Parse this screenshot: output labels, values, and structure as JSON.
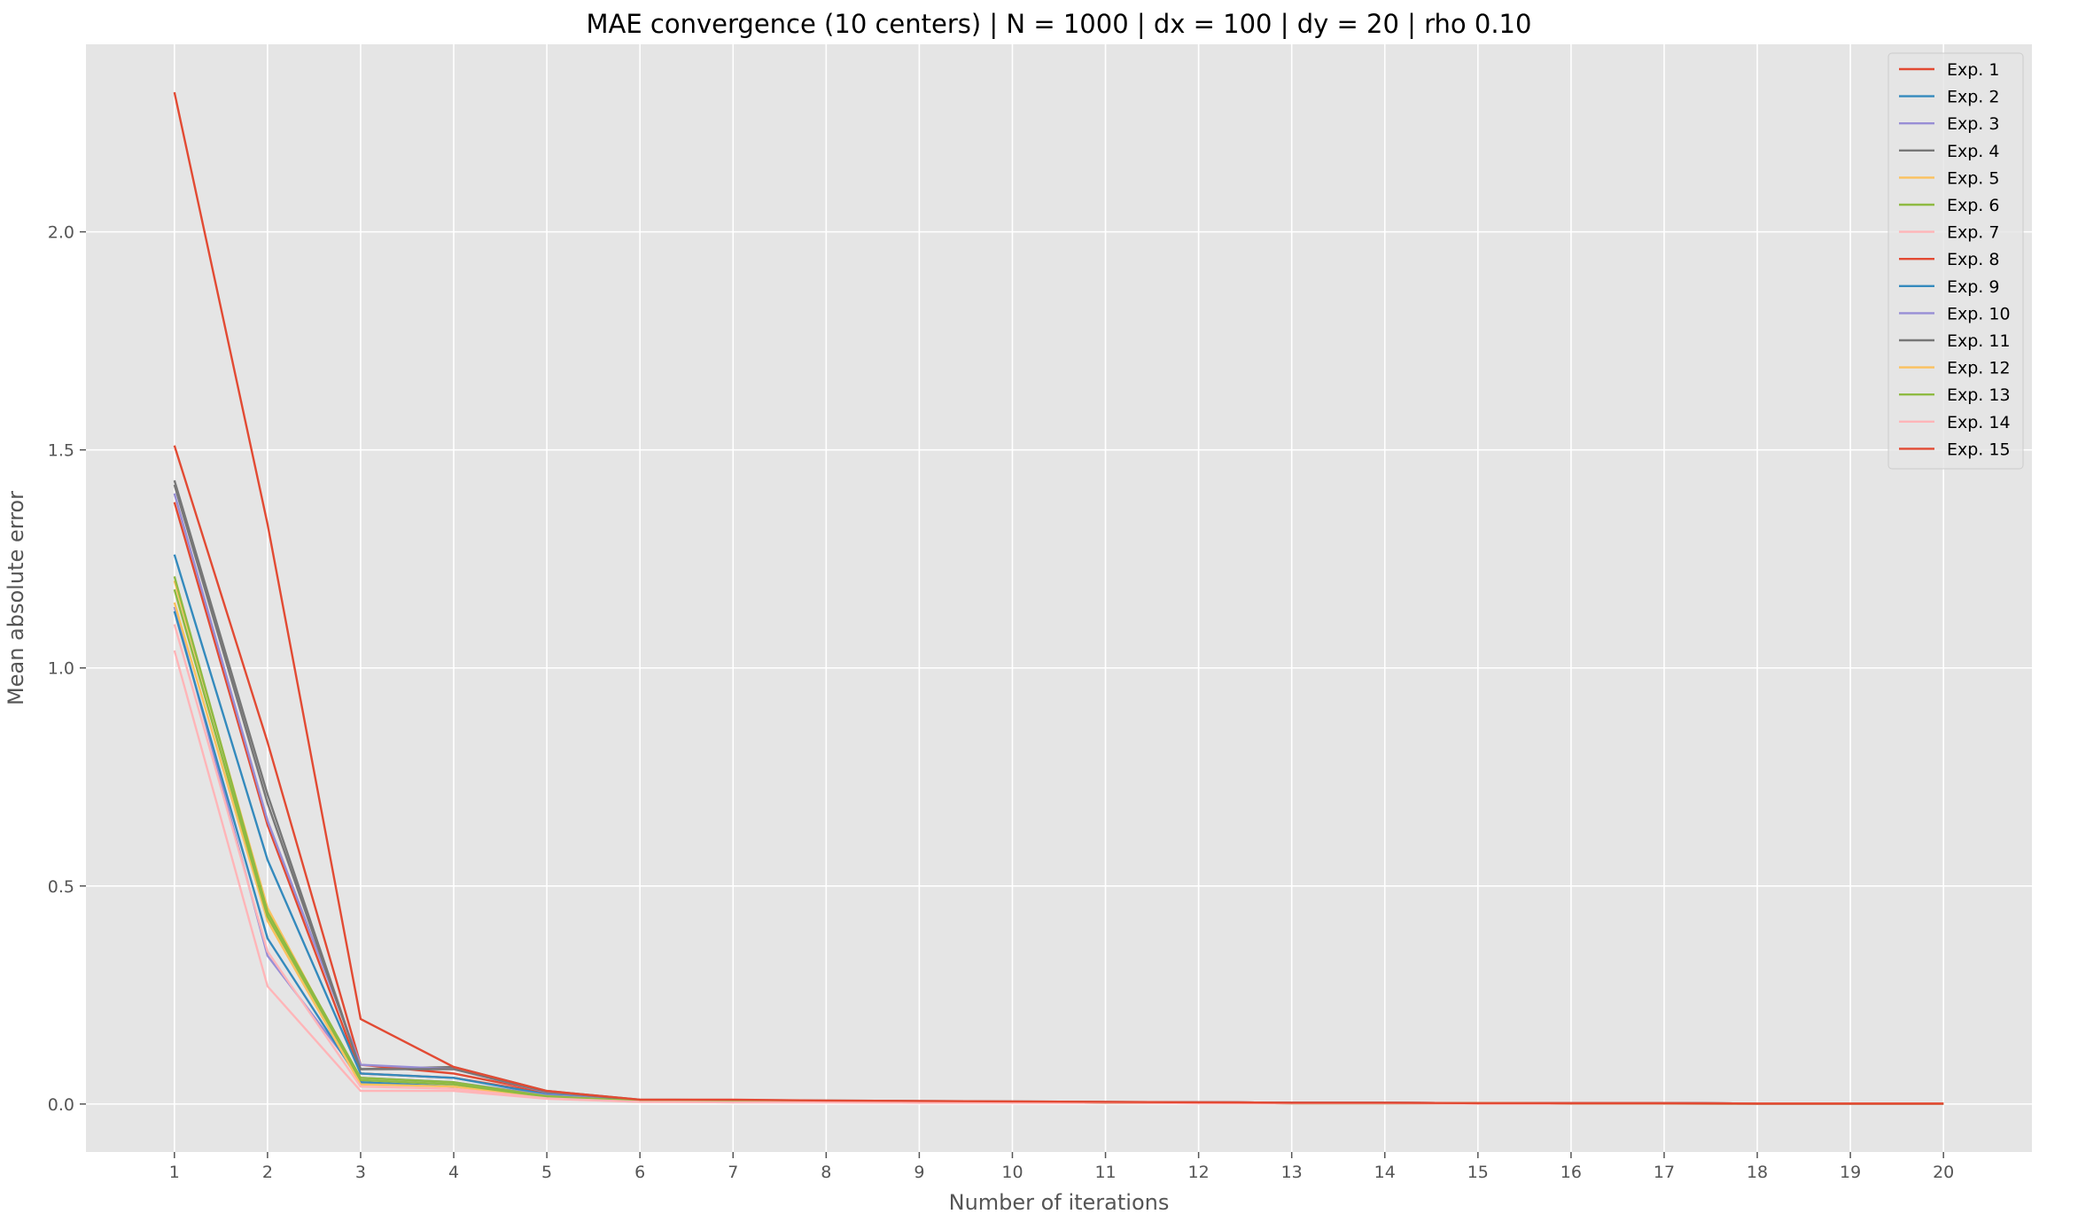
{
  "chart_data": {
    "type": "line",
    "title": "MAE convergence (10 centers) | N = 1000 | dx = 100 | dy = 20 | rho 0.10",
    "xlabel": "Number of iterations",
    "ylabel": "Mean absolute error",
    "xlim": [
      0.05,
      20.95
    ],
    "ylim": [
      -0.11,
      2.43
    ],
    "x": [
      1,
      2,
      3,
      4,
      5,
      6,
      7,
      8,
      9,
      10,
      11,
      12,
      13,
      14,
      15,
      16,
      17,
      18,
      19,
      20
    ],
    "x_ticks": [
      1,
      2,
      3,
      4,
      5,
      6,
      7,
      8,
      9,
      10,
      11,
      12,
      13,
      14,
      15,
      16,
      17,
      18,
      19,
      20
    ],
    "y_ticks": [
      0.0,
      0.5,
      1.0,
      1.5,
      2.0
    ],
    "y_tick_labels": [
      "0.0",
      "0.5",
      "1.0",
      "1.5",
      "2.0"
    ],
    "grid": true,
    "style": "ggplot",
    "legend_position": "upper right",
    "series": [
      {
        "name": "Exp. 1",
        "color": "#E24A33",
        "values": [
          1.38,
          0.64,
          0.07,
          0.06,
          0.025,
          0.009,
          0.008,
          0.007,
          0.006,
          0.005,
          0.004,
          0.004,
          0.003,
          0.003,
          0.002,
          0.002,
          0.002,
          0.001,
          0.001,
          0.001
        ]
      },
      {
        "name": "Exp. 2",
        "color": "#348ABD",
        "values": [
          1.26,
          0.56,
          0.07,
          0.06,
          0.022,
          0.008,
          0.007,
          0.006,
          0.005,
          0.004,
          0.004,
          0.003,
          0.003,
          0.002,
          0.002,
          0.002,
          0.001,
          0.001,
          0.001,
          0.001
        ]
      },
      {
        "name": "Exp. 3",
        "color": "#988ED5",
        "values": [
          1.14,
          0.34,
          0.06,
          0.05,
          0.02,
          0.007,
          0.006,
          0.005,
          0.005,
          0.004,
          0.003,
          0.003,
          0.002,
          0.002,
          0.002,
          0.001,
          0.001,
          0.001,
          0.001,
          0.001
        ]
      },
      {
        "name": "Exp. 4",
        "color": "#777777",
        "values": [
          1.43,
          0.71,
          0.08,
          0.085,
          0.03,
          0.01,
          0.009,
          0.008,
          0.007,
          0.006,
          0.005,
          0.004,
          0.003,
          0.003,
          0.002,
          0.002,
          0.002,
          0.001,
          0.001,
          0.001
        ]
      },
      {
        "name": "Exp. 5",
        "color": "#FBC15E",
        "values": [
          1.2,
          0.45,
          0.05,
          0.04,
          0.015,
          0.006,
          0.005,
          0.005,
          0.004,
          0.004,
          0.003,
          0.003,
          0.002,
          0.002,
          0.002,
          0.001,
          0.001,
          0.001,
          0.001,
          0.001
        ]
      },
      {
        "name": "Exp. 6",
        "color": "#8EBA42",
        "values": [
          1.21,
          0.44,
          0.06,
          0.05,
          0.018,
          0.007,
          0.006,
          0.005,
          0.005,
          0.004,
          0.003,
          0.003,
          0.002,
          0.002,
          0.002,
          0.001,
          0.001,
          0.001,
          0.001,
          0.001
        ]
      },
      {
        "name": "Exp. 7",
        "color": "#FFB5B8",
        "values": [
          1.04,
          0.27,
          0.03,
          0.03,
          0.012,
          0.005,
          0.004,
          0.004,
          0.003,
          0.003,
          0.003,
          0.002,
          0.002,
          0.002,
          0.001,
          0.001,
          0.001,
          0.001,
          0.001,
          0.001
        ]
      },
      {
        "name": "Exp. 8",
        "color": "#E24A33",
        "values": [
          1.51,
          0.83,
          0.09,
          0.07,
          0.028,
          0.009,
          0.008,
          0.007,
          0.006,
          0.005,
          0.004,
          0.004,
          0.003,
          0.003,
          0.002,
          0.002,
          0.002,
          0.001,
          0.001,
          0.001
        ]
      },
      {
        "name": "Exp. 9",
        "color": "#348ABD",
        "values": [
          1.13,
          0.38,
          0.05,
          0.04,
          0.016,
          0.006,
          0.005,
          0.005,
          0.004,
          0.004,
          0.003,
          0.003,
          0.002,
          0.002,
          0.002,
          0.001,
          0.001,
          0.001,
          0.001,
          0.001
        ]
      },
      {
        "name": "Exp. 10",
        "color": "#988ED5",
        "values": [
          1.4,
          0.65,
          0.09,
          0.08,
          0.027,
          0.009,
          0.008,
          0.007,
          0.006,
          0.005,
          0.004,
          0.004,
          0.003,
          0.003,
          0.002,
          0.002,
          0.002,
          0.001,
          0.001,
          0.001
        ]
      },
      {
        "name": "Exp. 11",
        "color": "#777777",
        "values": [
          1.42,
          0.69,
          0.08,
          0.08,
          0.028,
          0.009,
          0.008,
          0.007,
          0.006,
          0.005,
          0.004,
          0.004,
          0.003,
          0.003,
          0.002,
          0.002,
          0.002,
          0.001,
          0.001,
          0.001
        ]
      },
      {
        "name": "Exp. 12",
        "color": "#FBC15E",
        "values": [
          1.15,
          0.42,
          0.045,
          0.04,
          0.015,
          0.006,
          0.005,
          0.005,
          0.004,
          0.004,
          0.003,
          0.003,
          0.002,
          0.002,
          0.002,
          0.001,
          0.001,
          0.001,
          0.001,
          0.001
        ]
      },
      {
        "name": "Exp. 13",
        "color": "#8EBA42",
        "values": [
          1.18,
          0.43,
          0.055,
          0.045,
          0.017,
          0.007,
          0.006,
          0.005,
          0.005,
          0.004,
          0.003,
          0.003,
          0.002,
          0.002,
          0.002,
          0.001,
          0.001,
          0.001,
          0.001,
          0.001
        ]
      },
      {
        "name": "Exp. 14",
        "color": "#FFB5B8",
        "values": [
          1.1,
          0.35,
          0.04,
          0.035,
          0.013,
          0.005,
          0.004,
          0.004,
          0.003,
          0.003,
          0.003,
          0.002,
          0.002,
          0.002,
          0.001,
          0.001,
          0.001,
          0.001,
          0.001,
          0.001
        ]
      },
      {
        "name": "Exp. 15",
        "color": "#E24A33",
        "values": [
          2.32,
          1.33,
          0.195,
          0.085,
          0.03,
          0.01,
          0.01,
          0.008,
          0.007,
          0.006,
          0.005,
          0.004,
          0.003,
          0.003,
          0.002,
          0.002,
          0.002,
          0.001,
          0.001,
          0.001
        ]
      }
    ]
  }
}
